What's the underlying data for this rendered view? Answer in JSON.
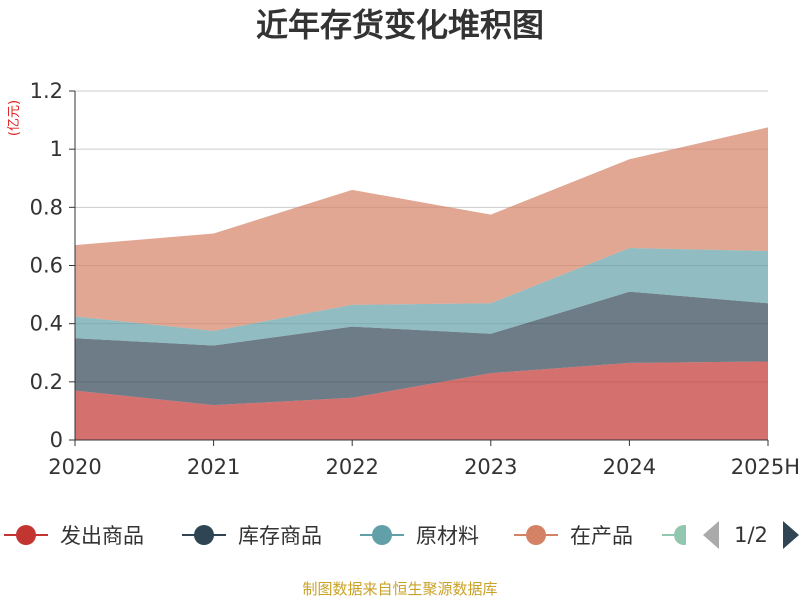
{
  "chart_data": {
    "type": "area",
    "stacked": true,
    "title": "近年存货变化堆积图",
    "ylabel": "(亿元)",
    "categories": [
      "2020",
      "2021",
      "2022",
      "2023",
      "2024",
      "2025H"
    ],
    "ylim": [
      0,
      1.2
    ],
    "yticks": [
      "0",
      "0.2",
      "0.4",
      "0.6",
      "0.8",
      "1",
      "1.2"
    ],
    "grid": true,
    "legend_position": "bottom",
    "series": [
      {
        "name": "发出商品",
        "color": "#c23531",
        "values": [
          0.17,
          0.12,
          0.145,
          0.23,
          0.265,
          0.27
        ]
      },
      {
        "name": "库存商品",
        "color": "#2f4554",
        "values": [
          0.18,
          0.205,
          0.245,
          0.135,
          0.245,
          0.2
        ]
      },
      {
        "name": "原材料",
        "color": "#61a0a8",
        "values": [
          0.075,
          0.05,
          0.075,
          0.105,
          0.15,
          0.18
        ]
      },
      {
        "name": "在产品",
        "color": "#d48265",
        "values": [
          0.245,
          0.335,
          0.395,
          0.305,
          0.305,
          0.425
        ]
      }
    ],
    "legend_partial_color": "#91c7ae"
  },
  "pager": {
    "text": "1/2",
    "prev_icon": "triangle-left-icon",
    "next_icon": "triangle-right-icon",
    "prev_color": "#aaaaaa",
    "next_color": "#2f4554"
  },
  "source": "制图数据来自恒生聚源数据库"
}
